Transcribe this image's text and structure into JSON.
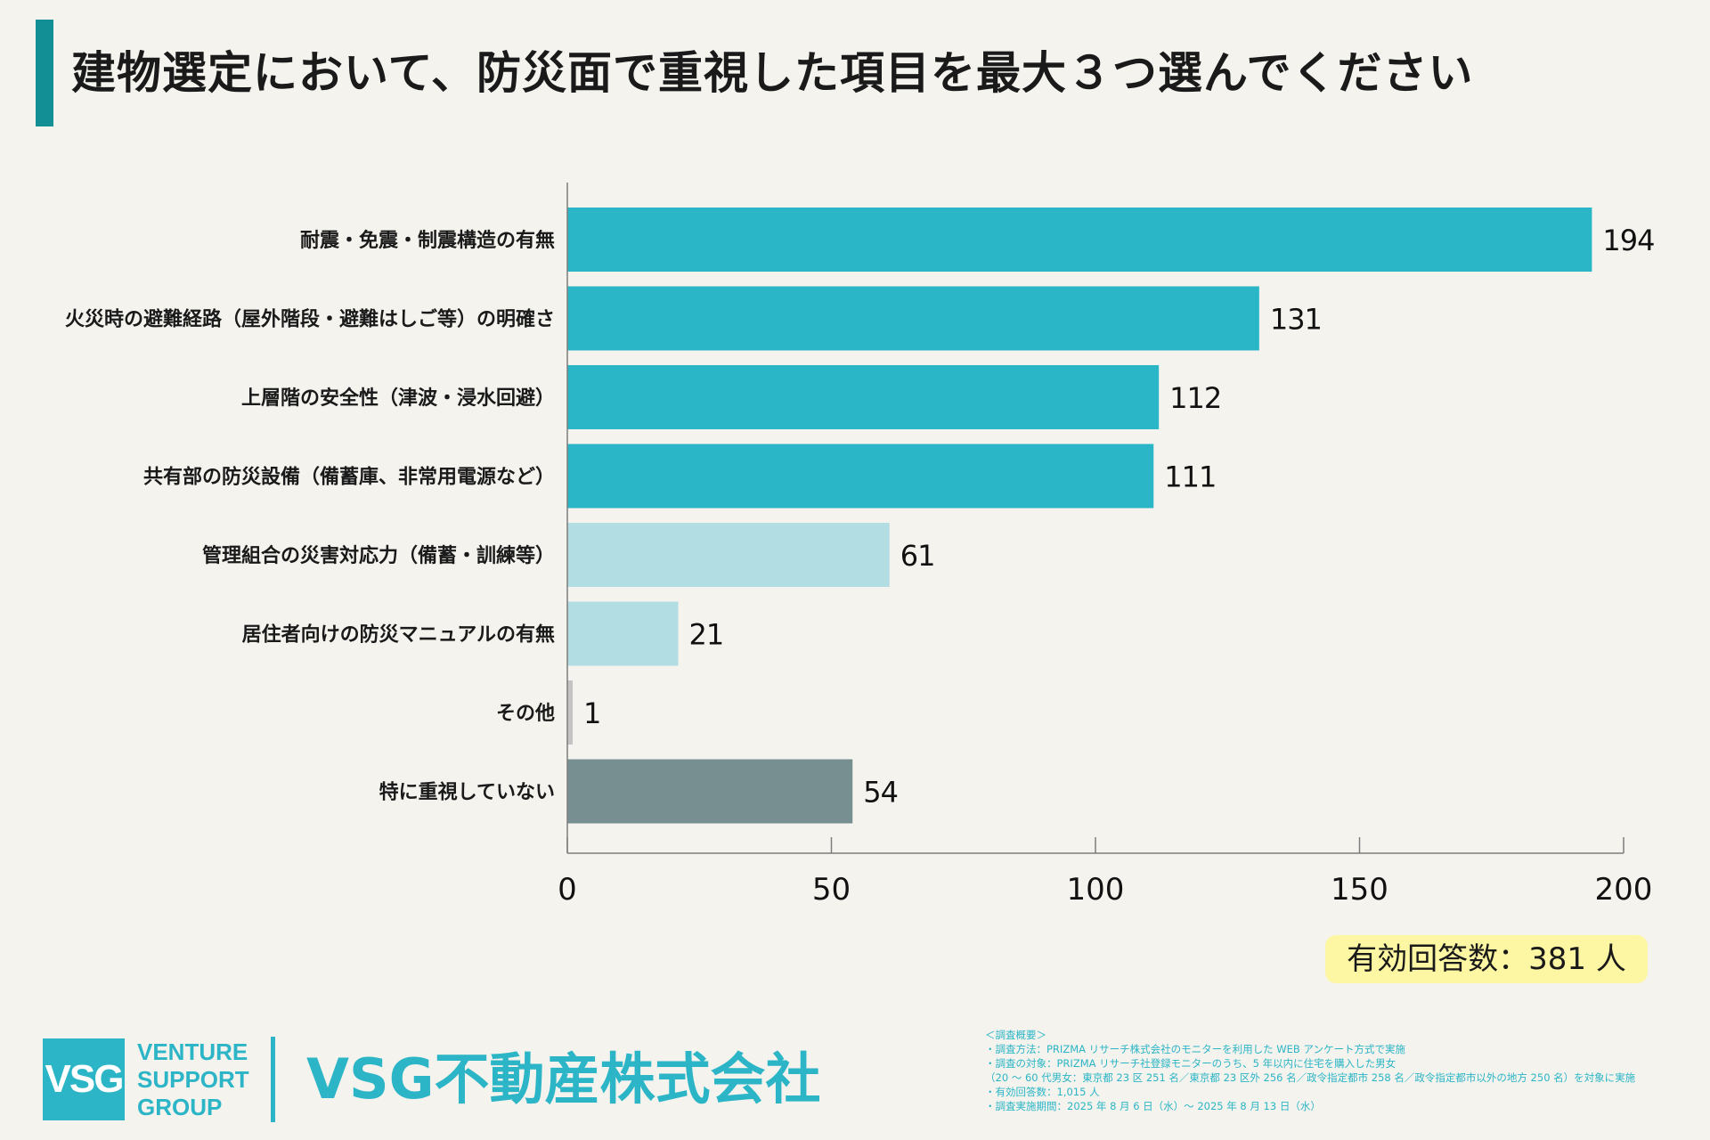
{
  "title": "建物選定において、防災面で重視した項目を最大３つ選んでください",
  "chart_data": {
    "type": "bar",
    "orientation": "horizontal",
    "categories": [
      "耐震・免震・制震構造の有無",
      "火災時の避難経路（屋外階段・避難はしご等）の明確さ",
      "上層階の安全性（津波・浸水回避）",
      "共有部の防災設備（備蓄庫、非常用電源など）",
      "管理組合の災害対応力（備蓄・訓練等）",
      "居住者向けの防災マニュアルの有無",
      "その他",
      "特に重視していない"
    ],
    "values": [
      194,
      131,
      112,
      111,
      61,
      21,
      1,
      54
    ],
    "bar_colors": [
      "#2bb6c7",
      "#2bb6c7",
      "#2bb6c7",
      "#2bb6c7",
      "#b2dde2",
      "#b2dde2",
      "#c4c4c4",
      "#788f92"
    ],
    "xlim": [
      0,
      200
    ],
    "xticks": [
      0,
      50,
      100,
      150,
      200
    ],
    "xlabel": "",
    "ylabel": "",
    "grid": false
  },
  "respondents": "有効回答数：381 人",
  "footer": {
    "logo_text": "VSG",
    "logo_words": [
      "VENTURE",
      "SUPPORT",
      "GROUP"
    ],
    "company_name": "VSG不動産株式会社",
    "notes": [
      "＜調査概要＞",
      "・調査方法：PRIZMA リサーチ株式会社のモニターを利用した WEB アンケート方式で実施",
      "・調査の対象：PRIZMA リサーチ社登録モニターのうち、5 年以内に住宅を購入した男女",
      "（20 ～ 60 代男女：東京都 23 区 251 名／東京都 23 区外 256 名／政令指定都市 258 名／政令指定都市以外の地方 250 名）を対象に実施",
      "・有効回答数：1,015 人",
      "・調査実施期間：2025 年 8 月 6 日（水）～ 2025 年 8 月 13 日（水）"
    ]
  },
  "colors": {
    "accent": "#128f94",
    "brand": "#2bb5c6",
    "highlight": "#fdf6a3",
    "background": "#f4f3ee"
  }
}
